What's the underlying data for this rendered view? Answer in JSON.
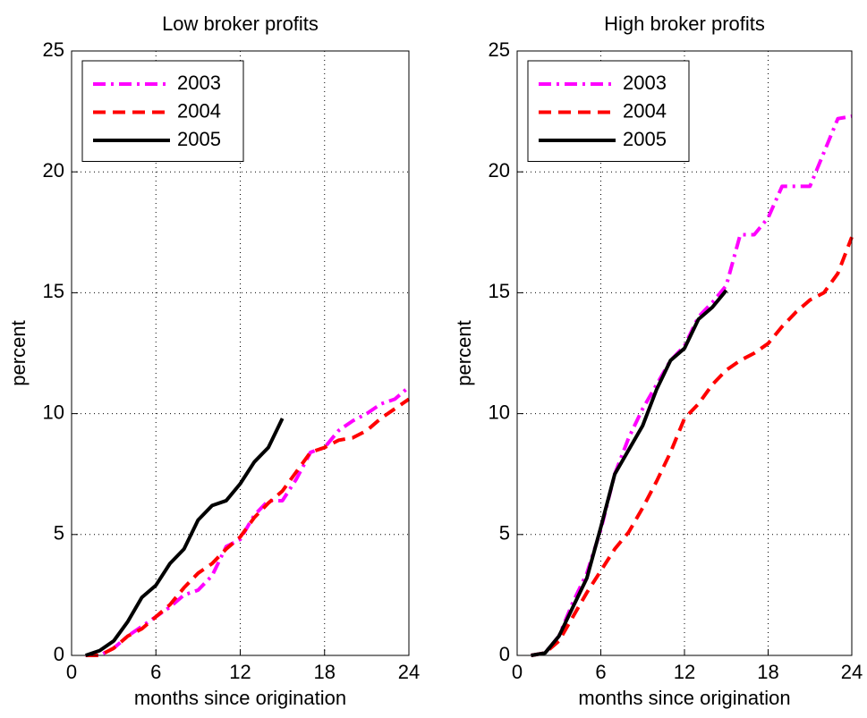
{
  "chart_data": [
    {
      "type": "line",
      "title": "Low broker profits",
      "xlabel": "months since origination",
      "ylabel": "percent",
      "x": [
        1,
        2,
        3,
        4,
        5,
        6,
        7,
        8,
        9,
        10,
        11,
        12,
        13,
        14,
        15,
        16,
        17,
        18,
        19,
        20,
        21,
        22,
        23,
        24
      ],
      "series": [
        {
          "name": "2003",
          "color": "#ff00ff",
          "linestyle": "-.",
          "values": [
            0,
            0,
            0.3,
            0.8,
            1.2,
            1.6,
            2.0,
            2.5,
            2.7,
            3.3,
            4.5,
            4.8,
            5.8,
            6.4,
            6.4,
            7.3,
            8.4,
            8.6,
            9.3,
            9.7,
            10.0,
            10.4,
            10.6,
            11.1
          ]
        },
        {
          "name": "2004",
          "color": "#ff0000",
          "linestyle": "--",
          "values": [
            0,
            0,
            0.3,
            0.8,
            1.1,
            1.6,
            2.1,
            2.8,
            3.4,
            3.8,
            4.4,
            4.9,
            5.7,
            6.3,
            6.8,
            7.6,
            8.4,
            8.6,
            8.9,
            9.0,
            9.3,
            9.8,
            10.2,
            10.6
          ]
        },
        {
          "name": "2005",
          "color": "#000000",
          "linestyle": "-",
          "values": [
            0,
            0.2,
            0.6,
            1.4,
            2.4,
            2.9,
            3.8,
            4.4,
            5.6,
            6.2,
            6.4,
            7.1,
            8.0,
            8.6,
            9.8,
            null,
            null,
            null,
            null,
            null,
            null,
            null,
            null,
            null
          ]
        }
      ],
      "xlim": [
        0,
        24
      ],
      "xticks": [
        0,
        6,
        12,
        18,
        24
      ],
      "ylim": [
        0,
        25
      ],
      "yticks": [
        0,
        5,
        10,
        15,
        20,
        25
      ],
      "grid": true,
      "legend": "upper left"
    },
    {
      "type": "line",
      "title": "High broker profits",
      "xlabel": "months since origination",
      "ylabel": "percent",
      "x": [
        1,
        2,
        3,
        4,
        5,
        6,
        7,
        8,
        9,
        10,
        11,
        12,
        13,
        14,
        15,
        16,
        17,
        18,
        19,
        20,
        21,
        22,
        23,
        24
      ],
      "series": [
        {
          "name": "2003",
          "color": "#ff00ff",
          "linestyle": "-.",
          "values": [
            0,
            0.1,
            0.8,
            2.2,
            3.4,
            5.2,
            7.5,
            9.0,
            10.2,
            11.2,
            12.2,
            12.8,
            14.0,
            14.6,
            15.3,
            17.4,
            17.4,
            18.1,
            19.4,
            19.4,
            19.4,
            20.8,
            22.2,
            22.3
          ]
        },
        {
          "name": "2004",
          "color": "#ff0000",
          "linestyle": "--",
          "values": [
            0,
            0.1,
            0.6,
            1.6,
            2.6,
            3.5,
            4.4,
            5.1,
            6.1,
            7.2,
            8.4,
            9.8,
            10.4,
            11.2,
            11.8,
            12.2,
            12.5,
            12.9,
            13.6,
            14.2,
            14.7,
            15.0,
            15.8,
            17.3
          ]
        },
        {
          "name": "2005",
          "color": "#000000",
          "linestyle": "-",
          "values": [
            0,
            0.1,
            0.8,
            2.0,
            3.2,
            5.3,
            7.5,
            8.5,
            9.5,
            11.0,
            12.2,
            12.7,
            13.9,
            14.4,
            15.1,
            null,
            null,
            null,
            null,
            null,
            null,
            null,
            null,
            null
          ]
        }
      ],
      "xlim": [
        0,
        24
      ],
      "xticks": [
        0,
        6,
        12,
        18,
        24
      ],
      "ylim": [
        0,
        25
      ],
      "yticks": [
        0,
        5,
        10,
        15,
        20,
        25
      ],
      "grid": true,
      "legend": "upper left"
    }
  ]
}
